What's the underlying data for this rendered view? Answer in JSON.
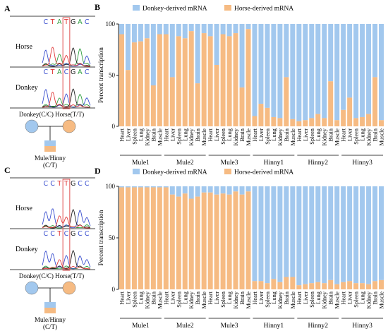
{
  "colors": {
    "donkey": "#a2c8ee",
    "horse": "#f6bb83",
    "peak_red": "#e03b3b",
    "peak_green": "#2e9e3e",
    "peak_blue": "#3a4fcf",
    "peak_black": "#222222",
    "highlight_box": "#e05050"
  },
  "panels": {
    "A": {
      "letter": "A",
      "sequence_top": [
        "C",
        "T",
        "A",
        "T",
        "G",
        "A",
        "C"
      ],
      "sequence_bottom": [
        "C",
        "T",
        "A",
        "C",
        "G",
        "A",
        "C"
      ],
      "horse_label": "Horse",
      "donkey_label": "Donkey",
      "parents_label": "Donkey(C/C) Horse(T/T)",
      "offspring_label_1": "Mule/Hinny",
      "offspring_label_2": "(C/T)"
    },
    "C": {
      "letter": "C",
      "sequence_top": [
        "C",
        "C",
        "T",
        "T",
        "G",
        "C",
        "C"
      ],
      "sequence_bottom": [
        "C",
        "C",
        "T",
        "C",
        "G",
        "C",
        "C"
      ],
      "horse_label": "Horse",
      "donkey_label": "Donkey",
      "parents_label": "Donkey(C/C) Horse(T/T)",
      "offspring_label_1": "Mule/Hinny",
      "offspring_label_2": "(C/T)"
    }
  },
  "chart_data": [
    {
      "panel": "B",
      "type": "bar",
      "stacked": true,
      "ylabel": "Percent transcription",
      "ylim": [
        0,
        100
      ],
      "yticks": [
        "0",
        "50",
        "100"
      ],
      "legend": [
        "Donkey-derived mRNA",
        "Horse-derived mRNA"
      ],
      "tissues": [
        "Heart",
        "Liver",
        "Spleen",
        "Lung",
        "Kidney",
        "Brain",
        "Muscle"
      ],
      "groups": [
        "Mule1",
        "Mule2",
        "Mule3",
        "Hinny1",
        "Hinny2",
        "Hinny3"
      ],
      "series": [
        {
          "name": "Horse-derived mRNA",
          "values": [
            90,
            55,
            82,
            83,
            86,
            40,
            90,
            90,
            48,
            88,
            86,
            93,
            42,
            91,
            88,
            60,
            90,
            88,
            91,
            38,
            95,
            10,
            22,
            18,
            9,
            8,
            48,
            7,
            5,
            6,
            8,
            12,
            8,
            44,
            6,
            16,
            28,
            8,
            9,
            12,
            48,
            6
          ]
        }
      ]
    },
    {
      "panel": "D",
      "type": "bar",
      "stacked": true,
      "ylabel": "Percent transcription",
      "ylim": [
        0,
        100
      ],
      "yticks": [
        "0",
        "50",
        "100"
      ],
      "legend": [
        "Donkey-derived mRNA",
        "Horse-derived mRNA"
      ],
      "tissues": [
        "Heart",
        "Liver",
        "Spleen",
        "Lung",
        "Kidney",
        "Brain",
        "Muscle"
      ],
      "groups": [
        "Mule1",
        "Mule2",
        "Mule3",
        "Hinny1",
        "Hinny2",
        "Hinny3"
      ],
      "series": [
        {
          "name": "Horse-derived mRNA",
          "values": [
            99,
            99,
            99,
            99,
            99,
            99,
            99,
            99,
            92,
            90,
            93,
            88,
            90,
            94,
            94,
            92,
            93,
            92,
            95,
            92,
            95,
            8,
            8,
            6,
            10,
            7,
            12,
            12,
            4,
            5,
            6,
            7,
            6,
            9,
            5,
            7,
            8,
            6,
            6,
            5,
            8,
            9
          ]
        }
      ]
    }
  ]
}
